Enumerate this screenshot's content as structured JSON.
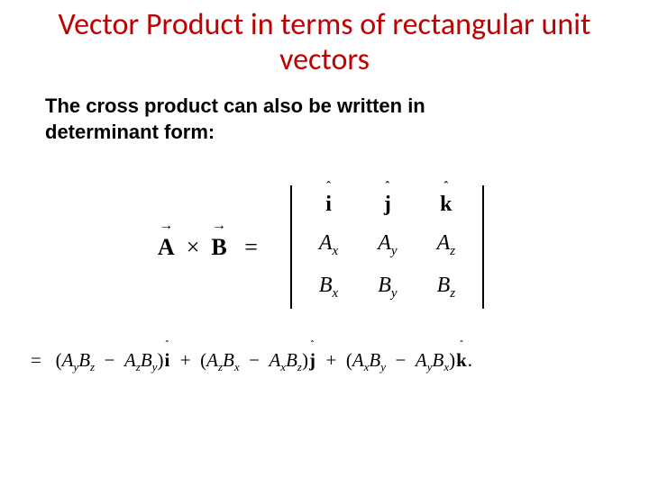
{
  "title": "Vector Product in terms of rectangular unit vectors",
  "subheading_line1": "The cross product can also be written in",
  "subheading_line2": "determinant form:",
  "lhs": {
    "A": "A",
    "B": "B",
    "times": "×",
    "eq": "="
  },
  "det": {
    "row1": {
      "c1": "i",
      "c2": "j",
      "c3": "k"
    },
    "row2": {
      "base": "A",
      "s1": "x",
      "s2": "y",
      "s3": "z"
    },
    "row3": {
      "base": "B",
      "s1": "x",
      "s2": "y",
      "s3": "z"
    }
  },
  "exp": {
    "eq": "=",
    "A": "A",
    "B": "B",
    "y": "y",
    "z": "z",
    "x": "x",
    "i": "i",
    "j": "j",
    "k": "k",
    "plus": "+",
    "minus": "−",
    "lp": "(",
    "rp": ")",
    "dot": "."
  },
  "style": {
    "title_color": "#c00000",
    "title_fontsize": 34,
    "sub_fontsize": 22,
    "det_fontsize": 24,
    "exp_fontsize": 21,
    "background": "#ffffff",
    "text_color": "#000000"
  }
}
